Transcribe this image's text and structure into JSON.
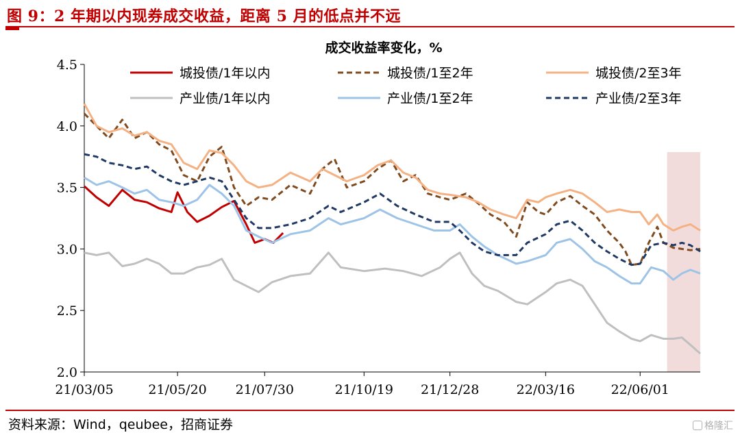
{
  "figure": {
    "title": "图 9：2 年期以内现券成交收益，距离 5 月的低点并不远",
    "source": "资料来源：Wind，qeubee，招商证券",
    "watermark": "格隆汇"
  },
  "colors": {
    "title_red": "#c00000",
    "highlight_band": "#f2dcdb"
  },
  "chart_data": {
    "type": "line",
    "title": "成交收益率变化，%",
    "ylim": [
      2.0,
      4.5
    ],
    "yticks": [
      "2.0",
      "2.5",
      "3.0",
      "3.5",
      "4.0",
      "4.5"
    ],
    "xticks": [
      "21/03/05",
      "21/05/20",
      "21/07/30",
      "21/10/19",
      "21/12/28",
      "22/03/16",
      "22/06/01"
    ],
    "x_range": [
      "2021-03-05",
      "2022-07-20"
    ],
    "grid": false,
    "legend_position": "top",
    "highlight_period": [
      "2022-06-23",
      "2022-07-20"
    ],
    "series": [
      {
        "name": "城投债/1年以内",
        "color": "#c00000",
        "dash": false,
        "points": [
          [
            "2021-03-05",
            3.51
          ],
          [
            "2021-03-15",
            3.42
          ],
          [
            "2021-03-25",
            3.35
          ],
          [
            "2021-04-05",
            3.48
          ],
          [
            "2021-04-15",
            3.4
          ],
          [
            "2021-04-25",
            3.38
          ],
          [
            "2021-05-05",
            3.33
          ],
          [
            "2021-05-15",
            3.3
          ],
          [
            "2021-05-20",
            3.46
          ],
          [
            "2021-05-28",
            3.3
          ],
          [
            "2021-06-05",
            3.22
          ],
          [
            "2021-06-15",
            3.27
          ],
          [
            "2021-06-25",
            3.34
          ],
          [
            "2021-07-05",
            3.39
          ],
          [
            "2021-07-15",
            3.2
          ],
          [
            "2021-07-22",
            3.05
          ],
          [
            "2021-07-30",
            3.08
          ],
          [
            "2021-08-06",
            3.05
          ],
          [
            "2021-08-14",
            3.13
          ]
        ]
      },
      {
        "name": "城投债/1至2年",
        "color": "#7f4a1e",
        "dash": true,
        "points": [
          [
            "2021-03-05",
            4.1
          ],
          [
            "2021-03-15",
            4.0
          ],
          [
            "2021-03-25",
            3.9
          ],
          [
            "2021-04-05",
            4.05
          ],
          [
            "2021-04-15",
            3.9
          ],
          [
            "2021-04-25",
            3.95
          ],
          [
            "2021-05-05",
            3.85
          ],
          [
            "2021-05-15",
            3.8
          ],
          [
            "2021-05-25",
            3.6
          ],
          [
            "2021-06-05",
            3.55
          ],
          [
            "2021-06-15",
            3.75
          ],
          [
            "2021-06-25",
            3.83
          ],
          [
            "2021-07-05",
            3.5
          ],
          [
            "2021-07-15",
            3.35
          ],
          [
            "2021-07-25",
            3.42
          ],
          [
            "2021-08-05",
            3.4
          ],
          [
            "2021-08-20",
            3.52
          ],
          [
            "2021-09-05",
            3.45
          ],
          [
            "2021-09-15",
            3.65
          ],
          [
            "2021-09-25",
            3.73
          ],
          [
            "2021-10-05",
            3.5
          ],
          [
            "2021-10-19",
            3.55
          ],
          [
            "2021-10-30",
            3.65
          ],
          [
            "2021-11-10",
            3.72
          ],
          [
            "2021-11-20",
            3.55
          ],
          [
            "2021-11-30",
            3.6
          ],
          [
            "2021-12-10",
            3.45
          ],
          [
            "2021-12-20",
            3.42
          ],
          [
            "2021-12-28",
            3.4
          ],
          [
            "2022-01-10",
            3.45
          ],
          [
            "2022-01-20",
            3.37
          ],
          [
            "2022-01-30",
            3.28
          ],
          [
            "2022-02-10",
            3.22
          ],
          [
            "2022-02-20",
            3.1
          ],
          [
            "2022-03-01",
            3.38
          ],
          [
            "2022-03-10",
            3.3
          ],
          [
            "2022-03-16",
            3.28
          ],
          [
            "2022-03-25",
            3.38
          ],
          [
            "2022-04-05",
            3.43
          ],
          [
            "2022-04-15",
            3.35
          ],
          [
            "2022-04-25",
            3.28
          ],
          [
            "2022-05-05",
            3.15
          ],
          [
            "2022-05-15",
            3.05
          ],
          [
            "2022-05-20",
            2.98
          ],
          [
            "2022-05-25",
            2.87
          ],
          [
            "2022-06-01",
            2.88
          ],
          [
            "2022-06-08",
            3.05
          ],
          [
            "2022-06-15",
            3.18
          ],
          [
            "2022-06-20",
            3.05
          ],
          [
            "2022-06-28",
            3.01
          ],
          [
            "2022-07-05",
            3.0
          ],
          [
            "2022-07-12",
            2.99
          ],
          [
            "2022-07-20",
            3.0
          ]
        ]
      },
      {
        "name": "城投债/2至3年",
        "color": "#f4b183",
        "dash": false,
        "points": [
          [
            "2021-03-05",
            4.18
          ],
          [
            "2021-03-15",
            4.0
          ],
          [
            "2021-03-25",
            3.95
          ],
          [
            "2021-04-05",
            3.98
          ],
          [
            "2021-04-15",
            3.92
          ],
          [
            "2021-04-25",
            3.95
          ],
          [
            "2021-05-05",
            3.88
          ],
          [
            "2021-05-15",
            3.85
          ],
          [
            "2021-05-25",
            3.7
          ],
          [
            "2021-06-05",
            3.65
          ],
          [
            "2021-06-15",
            3.8
          ],
          [
            "2021-06-25",
            3.78
          ],
          [
            "2021-07-05",
            3.68
          ],
          [
            "2021-07-15",
            3.55
          ],
          [
            "2021-07-25",
            3.5
          ],
          [
            "2021-08-05",
            3.52
          ],
          [
            "2021-08-20",
            3.62
          ],
          [
            "2021-09-05",
            3.55
          ],
          [
            "2021-09-15",
            3.65
          ],
          [
            "2021-09-25",
            3.6
          ],
          [
            "2021-10-05",
            3.55
          ],
          [
            "2021-10-19",
            3.6
          ],
          [
            "2021-10-30",
            3.68
          ],
          [
            "2021-11-10",
            3.72
          ],
          [
            "2021-11-20",
            3.62
          ],
          [
            "2021-11-30",
            3.58
          ],
          [
            "2021-12-10",
            3.48
          ],
          [
            "2021-12-20",
            3.45
          ],
          [
            "2021-12-28",
            3.44
          ],
          [
            "2022-01-10",
            3.42
          ],
          [
            "2022-01-20",
            3.38
          ],
          [
            "2022-01-30",
            3.32
          ],
          [
            "2022-02-10",
            3.28
          ],
          [
            "2022-02-20",
            3.25
          ],
          [
            "2022-03-01",
            3.4
          ],
          [
            "2022-03-10",
            3.38
          ],
          [
            "2022-03-16",
            3.42
          ],
          [
            "2022-03-25",
            3.45
          ],
          [
            "2022-04-05",
            3.48
          ],
          [
            "2022-04-15",
            3.45
          ],
          [
            "2022-04-25",
            3.38
          ],
          [
            "2022-05-05",
            3.3
          ],
          [
            "2022-05-15",
            3.32
          ],
          [
            "2022-05-25",
            3.3
          ],
          [
            "2022-06-01",
            3.3
          ],
          [
            "2022-06-08",
            3.2
          ],
          [
            "2022-06-15",
            3.28
          ],
          [
            "2022-06-20",
            3.2
          ],
          [
            "2022-06-28",
            3.15
          ],
          [
            "2022-07-05",
            3.18
          ],
          [
            "2022-07-12",
            3.2
          ],
          [
            "2022-07-20",
            3.15
          ]
        ]
      },
      {
        "name": "产业债/1年以内",
        "color": "#bfbfbf",
        "dash": false,
        "points": [
          [
            "2021-03-05",
            2.97
          ],
          [
            "2021-03-15",
            2.95
          ],
          [
            "2021-03-25",
            2.97
          ],
          [
            "2021-04-05",
            2.86
          ],
          [
            "2021-04-15",
            2.88
          ],
          [
            "2021-04-25",
            2.92
          ],
          [
            "2021-05-05",
            2.88
          ],
          [
            "2021-05-15",
            2.8
          ],
          [
            "2021-05-25",
            2.8
          ],
          [
            "2021-06-05",
            2.85
          ],
          [
            "2021-06-15",
            2.87
          ],
          [
            "2021-06-25",
            2.92
          ],
          [
            "2021-07-05",
            2.75
          ],
          [
            "2021-07-15",
            2.7
          ],
          [
            "2021-07-25",
            2.65
          ],
          [
            "2021-08-05",
            2.73
          ],
          [
            "2021-08-20",
            2.78
          ],
          [
            "2021-09-05",
            2.8
          ],
          [
            "2021-09-20",
            2.97
          ],
          [
            "2021-09-30",
            2.85
          ],
          [
            "2021-10-19",
            2.82
          ],
          [
            "2021-11-05",
            2.84
          ],
          [
            "2021-11-20",
            2.82
          ],
          [
            "2021-12-05",
            2.78
          ],
          [
            "2021-12-20",
            2.85
          ],
          [
            "2021-12-28",
            2.92
          ],
          [
            "2022-01-05",
            2.97
          ],
          [
            "2022-01-15",
            2.8
          ],
          [
            "2022-01-25",
            2.7
          ],
          [
            "2022-02-05",
            2.66
          ],
          [
            "2022-02-20",
            2.57
          ],
          [
            "2022-03-01",
            2.55
          ],
          [
            "2022-03-16",
            2.65
          ],
          [
            "2022-03-25",
            2.72
          ],
          [
            "2022-04-05",
            2.75
          ],
          [
            "2022-04-15",
            2.7
          ],
          [
            "2022-04-25",
            2.55
          ],
          [
            "2022-05-05",
            2.4
          ],
          [
            "2022-05-15",
            2.33
          ],
          [
            "2022-05-25",
            2.27
          ],
          [
            "2022-06-01",
            2.25
          ],
          [
            "2022-06-10",
            2.3
          ],
          [
            "2022-06-20",
            2.27
          ],
          [
            "2022-06-28",
            2.27
          ],
          [
            "2022-07-05",
            2.28
          ],
          [
            "2022-07-12",
            2.22
          ],
          [
            "2022-07-20",
            2.15
          ]
        ]
      },
      {
        "name": "产业债/1至2年",
        "color": "#9dc3e6",
        "dash": false,
        "points": [
          [
            "2021-03-05",
            3.58
          ],
          [
            "2021-03-15",
            3.52
          ],
          [
            "2021-03-25",
            3.55
          ],
          [
            "2021-04-05",
            3.5
          ],
          [
            "2021-04-15",
            3.45
          ],
          [
            "2021-04-25",
            3.48
          ],
          [
            "2021-05-05",
            3.4
          ],
          [
            "2021-05-15",
            3.38
          ],
          [
            "2021-05-25",
            3.35
          ],
          [
            "2021-06-05",
            3.4
          ],
          [
            "2021-06-15",
            3.52
          ],
          [
            "2021-06-25",
            3.45
          ],
          [
            "2021-07-05",
            3.35
          ],
          [
            "2021-07-15",
            3.15
          ],
          [
            "2021-07-25",
            3.1
          ],
          [
            "2021-08-05",
            3.05
          ],
          [
            "2021-08-20",
            3.12
          ],
          [
            "2021-09-05",
            3.15
          ],
          [
            "2021-09-20",
            3.25
          ],
          [
            "2021-09-30",
            3.2
          ],
          [
            "2021-10-19",
            3.25
          ],
          [
            "2021-11-01",
            3.32
          ],
          [
            "2021-11-15",
            3.25
          ],
          [
            "2021-11-30",
            3.2
          ],
          [
            "2021-12-15",
            3.15
          ],
          [
            "2021-12-28",
            3.15
          ],
          [
            "2022-01-05",
            3.2
          ],
          [
            "2022-01-15",
            3.1
          ],
          [
            "2022-01-25",
            3.02
          ],
          [
            "2022-02-05",
            2.95
          ],
          [
            "2022-02-20",
            2.88
          ],
          [
            "2022-03-01",
            2.9
          ],
          [
            "2022-03-16",
            2.95
          ],
          [
            "2022-03-25",
            3.05
          ],
          [
            "2022-04-05",
            3.08
          ],
          [
            "2022-04-15",
            3.0
          ],
          [
            "2022-04-25",
            2.9
          ],
          [
            "2022-05-05",
            2.85
          ],
          [
            "2022-05-15",
            2.78
          ],
          [
            "2022-05-25",
            2.72
          ],
          [
            "2022-06-01",
            2.72
          ],
          [
            "2022-06-10",
            2.85
          ],
          [
            "2022-06-20",
            2.82
          ],
          [
            "2022-06-28",
            2.75
          ],
          [
            "2022-07-05",
            2.8
          ],
          [
            "2022-07-12",
            2.83
          ],
          [
            "2022-07-20",
            2.8
          ]
        ]
      },
      {
        "name": "产业债/2至3年",
        "color": "#1f3864",
        "dash": true,
        "points": [
          [
            "2021-03-05",
            3.77
          ],
          [
            "2021-03-15",
            3.75
          ],
          [
            "2021-03-25",
            3.7
          ],
          [
            "2021-04-05",
            3.68
          ],
          [
            "2021-04-15",
            3.65
          ],
          [
            "2021-04-25",
            3.67
          ],
          [
            "2021-05-05",
            3.6
          ],
          [
            "2021-05-15",
            3.55
          ],
          [
            "2021-05-25",
            3.52
          ],
          [
            "2021-06-05",
            3.55
          ],
          [
            "2021-06-15",
            3.58
          ],
          [
            "2021-06-25",
            3.55
          ],
          [
            "2021-07-05",
            3.4
          ],
          [
            "2021-07-15",
            3.25
          ],
          [
            "2021-07-25",
            3.17
          ],
          [
            "2021-08-05",
            3.17
          ],
          [
            "2021-08-20",
            3.2
          ],
          [
            "2021-09-05",
            3.25
          ],
          [
            "2021-09-20",
            3.35
          ],
          [
            "2021-09-30",
            3.3
          ],
          [
            "2021-10-19",
            3.38
          ],
          [
            "2021-11-01",
            3.45
          ],
          [
            "2021-11-15",
            3.35
          ],
          [
            "2021-11-30",
            3.28
          ],
          [
            "2021-12-15",
            3.22
          ],
          [
            "2021-12-28",
            3.22
          ],
          [
            "2022-01-05",
            3.15
          ],
          [
            "2022-01-15",
            3.05
          ],
          [
            "2022-01-25",
            2.98
          ],
          [
            "2022-02-05",
            2.95
          ],
          [
            "2022-02-20",
            2.95
          ],
          [
            "2022-03-01",
            3.05
          ],
          [
            "2022-03-16",
            3.12
          ],
          [
            "2022-03-25",
            3.2
          ],
          [
            "2022-04-05",
            3.23
          ],
          [
            "2022-04-15",
            3.15
          ],
          [
            "2022-04-25",
            3.05
          ],
          [
            "2022-05-05",
            2.98
          ],
          [
            "2022-05-15",
            2.92
          ],
          [
            "2022-05-25",
            2.87
          ],
          [
            "2022-06-01",
            2.88
          ],
          [
            "2022-06-10",
            3.03
          ],
          [
            "2022-06-20",
            3.05
          ],
          [
            "2022-06-28",
            3.03
          ],
          [
            "2022-07-05",
            3.05
          ],
          [
            "2022-07-12",
            3.03
          ],
          [
            "2022-07-20",
            2.98
          ]
        ]
      }
    ]
  }
}
